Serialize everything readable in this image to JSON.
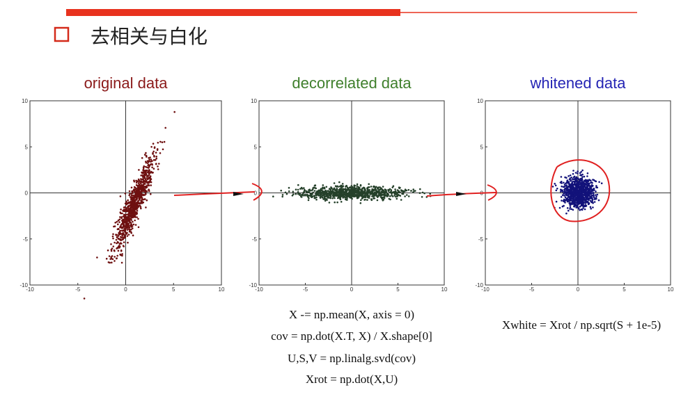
{
  "header": {
    "title": "去相关与白化"
  },
  "plots": [
    {
      "title": "original data",
      "xlim": [
        -10,
        10
      ],
      "ylim": [
        -10,
        10
      ],
      "xticks": [
        -10,
        -5,
        0,
        5,
        10
      ],
      "yticks": [
        -10,
        -5,
        0,
        5,
        10
      ]
    },
    {
      "title": "decorrelated data",
      "xlim": [
        -10,
        10
      ],
      "ylim": [
        -10,
        10
      ],
      "xticks": [
        -10,
        -5,
        0,
        5,
        10
      ],
      "yticks": [
        -10,
        -5,
        0,
        5,
        10
      ]
    },
    {
      "title": "whitened data",
      "xlim": [
        -10,
        10
      ],
      "ylim": [
        -10,
        10
      ],
      "xticks": [
        -10,
        -5,
        0,
        5,
        10
      ],
      "yticks": [
        -10,
        -5,
        0,
        5,
        10
      ]
    }
  ],
  "code": {
    "decorrelate": [
      "X -= np.mean(X, axis = 0)",
      "cov = np.dot(X.T, X) / X.shape[0]",
      "U,S,V = np.linalg.svd(cov)",
      "Xrot = np.dot(X,U)"
    ],
    "whiten": "Xwhite = Xrot / np.sqrt(S + 1e-5)"
  }
}
